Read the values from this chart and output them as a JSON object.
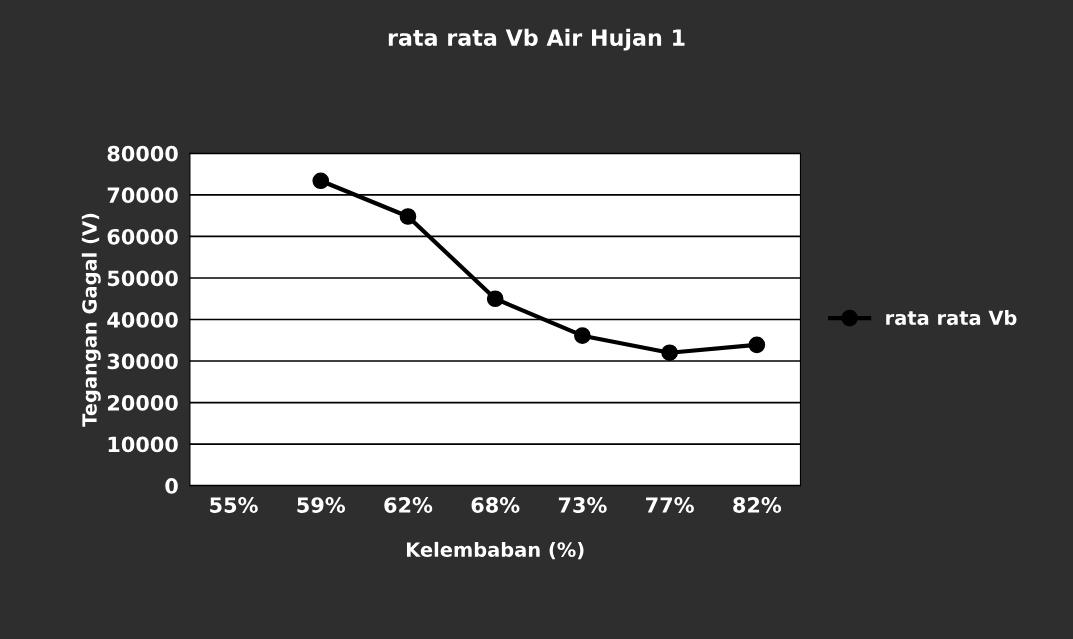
{
  "chart_data": {
    "type": "line",
    "title": "rata rata Vb Air Hujan 1",
    "xlabel": "Kelembaban (%)",
    "ylabel": "Tegangan Gagal (V)",
    "categories": [
      "55%",
      "59%",
      "62%",
      "68%",
      "73%",
      "77%",
      "82%"
    ],
    "series": [
      {
        "name": "rata rata Vb",
        "color": "#000000",
        "values": [
          null,
          73400,
          64800,
          45000,
          36100,
          32000,
          33900
        ]
      }
    ],
    "ylim": [
      0,
      80000
    ],
    "yticks": [
      0,
      10000,
      20000,
      30000,
      40000,
      50000,
      60000,
      70000,
      80000
    ],
    "grid": "y",
    "legend": "right",
    "marker": "circle",
    "line_style": "solid"
  }
}
